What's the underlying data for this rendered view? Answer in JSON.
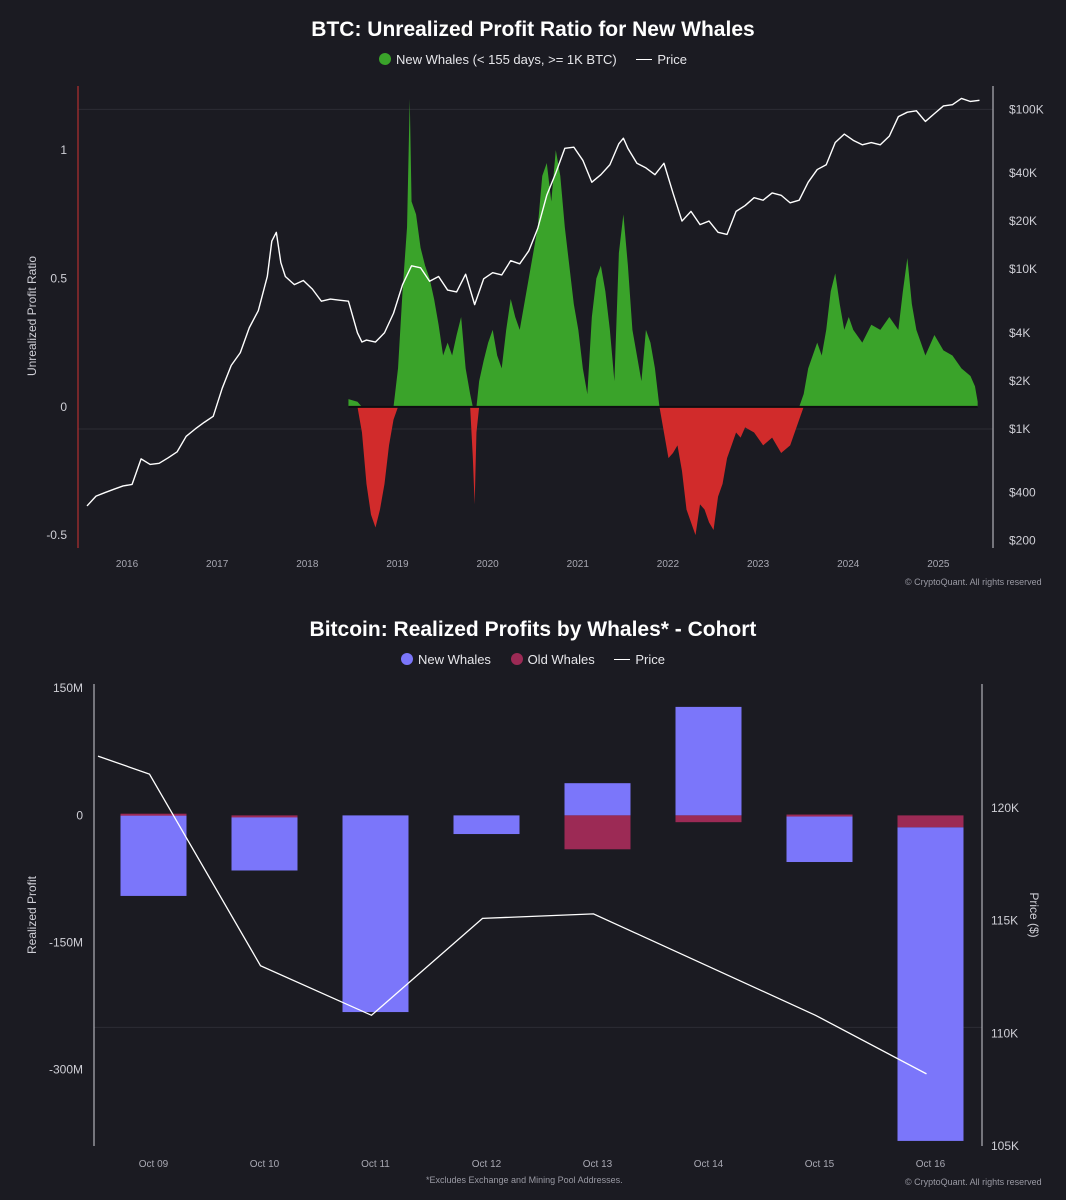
{
  "chart_data": [
    {
      "type": "area",
      "title": "BTC: Unrealized Profit Ratio for New Whales",
      "ylabel": "Unrealized Profit Ratio",
      "ylim": [
        -0.55,
        1.25
      ],
      "yticks": [
        1,
        0.5,
        0,
        -0.5
      ],
      "yticklabels": [
        "1",
        "0.5",
        "0",
        "-0.5"
      ],
      "y2lim": [
        180,
        140000
      ],
      "y2ticks": [
        100000,
        40000,
        20000,
        10000,
        4000,
        2000,
        1000,
        400,
        200
      ],
      "y2ticklabels": [
        "$100K",
        "$40K",
        "$20K",
        "$10K",
        "$4K",
        "$2K",
        "$1K",
        "$400",
        "$200"
      ],
      "y2scale": "log",
      "xlim": [
        2015.8,
        2025.95
      ],
      "xticks": [
        2016,
        2017,
        2018,
        2019,
        2020,
        2021,
        2022,
        2023,
        2024,
        2025
      ],
      "xticklabels": [
        "2016",
        "2017",
        "2018",
        "2019",
        "2020",
        "2021",
        "2022",
        "2023",
        "2024",
        "2025"
      ],
      "legend": [
        "New Whales (< 155 days, >= 1K BTC)",
        "Price"
      ],
      "legend_position": "top-center",
      "colors": {
        "positive": "#3aa32a",
        "negative": "#d12b2b",
        "price": "#ffffff"
      },
      "copyright": "© CryptoQuant. All rights reserved",
      "series": [
        {
          "name": "New Whales (< 155 days, >= 1K BTC)",
          "x": [
            2018.8,
            2018.9,
            2018.95,
            2019.0,
            2019.05,
            2019.1,
            2019.15,
            2019.2,
            2019.25,
            2019.3,
            2019.35,
            2019.4,
            2019.45,
            2019.48,
            2019.5,
            2019.55,
            2019.6,
            2019.65,
            2019.7,
            2019.75,
            2019.8,
            2019.85,
            2019.9,
            2019.95,
            2020.0,
            2020.05,
            2020.1,
            2020.15,
            2020.18,
            2020.2,
            2020.22,
            2020.25,
            2020.3,
            2020.35,
            2020.4,
            2020.45,
            2020.5,
            2020.55,
            2020.6,
            2020.65,
            2020.7,
            2020.75,
            2020.8,
            2020.85,
            2020.9,
            2020.95,
            2021.0,
            2021.05,
            2021.1,
            2021.15,
            2021.2,
            2021.25,
            2021.3,
            2021.35,
            2021.4,
            2021.45,
            2021.5,
            2021.55,
            2021.6,
            2021.65,
            2021.7,
            2021.75,
            2021.8,
            2021.85,
            2021.9,
            2021.95,
            2022.0,
            2022.05,
            2022.1,
            2022.15,
            2022.2,
            2022.25,
            2022.3,
            2022.35,
            2022.4,
            2022.45,
            2022.5,
            2022.55,
            2022.6,
            2022.65,
            2022.7,
            2022.75,
            2022.8,
            2022.85,
            2022.9,
            2022.95,
            2023.0,
            2023.05,
            2023.1,
            2023.15,
            2023.2,
            2023.3,
            2023.4,
            2023.5,
            2023.6,
            2023.7,
            2023.8,
            2023.85,
            2023.9,
            2023.95,
            2024.0,
            2024.05,
            2024.1,
            2024.15,
            2024.2,
            2024.25,
            2024.3,
            2024.35,
            2024.4,
            2024.5,
            2024.6,
            2024.7,
            2024.8,
            2024.9,
            2024.95,
            2025.0,
            2025.05,
            2025.1,
            2025.15,
            2025.2,
            2025.3,
            2025.4,
            2025.5,
            2025.6,
            2025.7,
            2025.75,
            2025.78
          ],
          "values": [
            0.03,
            0.02,
            -0.1,
            -0.3,
            -0.42,
            -0.47,
            -0.4,
            -0.3,
            -0.15,
            -0.05,
            0.15,
            0.45,
            0.7,
            1.2,
            0.8,
            0.75,
            0.62,
            0.55,
            0.5,
            0.42,
            0.32,
            0.2,
            0.25,
            0.2,
            0.28,
            0.35,
            0.15,
            0.05,
            -0.2,
            -0.38,
            -0.1,
            0.1,
            0.18,
            0.25,
            0.3,
            0.2,
            0.15,
            0.3,
            0.42,
            0.35,
            0.3,
            0.4,
            0.5,
            0.6,
            0.7,
            0.9,
            0.95,
            0.8,
            1.0,
            0.9,
            0.7,
            0.55,
            0.4,
            0.3,
            0.15,
            0.05,
            0.35,
            0.5,
            0.55,
            0.45,
            0.3,
            0.1,
            0.6,
            0.75,
            0.55,
            0.3,
            0.2,
            0.1,
            0.3,
            0.25,
            0.15,
            0.0,
            -0.1,
            -0.2,
            -0.18,
            -0.15,
            -0.25,
            -0.4,
            -0.45,
            -0.5,
            -0.38,
            -0.4,
            -0.45,
            -0.48,
            -0.35,
            -0.3,
            -0.2,
            -0.15,
            -0.1,
            -0.12,
            -0.08,
            -0.1,
            -0.15,
            -0.12,
            -0.18,
            -0.15,
            -0.05,
            0.05,
            0.15,
            0.2,
            0.25,
            0.2,
            0.3,
            0.45,
            0.52,
            0.4,
            0.3,
            0.35,
            0.3,
            0.25,
            0.32,
            0.3,
            0.35,
            0.3,
            0.45,
            0.58,
            0.4,
            0.3,
            0.25,
            0.2,
            0.28,
            0.22,
            0.2,
            0.15,
            0.12,
            0.08,
            0.02
          ]
        },
        {
          "name": "Price",
          "x": [
            2015.9,
            2016.0,
            2016.1,
            2016.2,
            2016.3,
            2016.4,
            2016.5,
            2016.6,
            2016.7,
            2016.8,
            2016.9,
            2017.0,
            2017.1,
            2017.2,
            2017.3,
            2017.4,
            2017.5,
            2017.6,
            2017.7,
            2017.8,
            2017.9,
            2017.95,
            2018.0,
            2018.05,
            2018.1,
            2018.2,
            2018.3,
            2018.4,
            2018.5,
            2018.6,
            2018.7,
            2018.8,
            2018.9,
            2018.95,
            2019.0,
            2019.1,
            2019.2,
            2019.3,
            2019.4,
            2019.5,
            2019.6,
            2019.7,
            2019.8,
            2019.9,
            2020.0,
            2020.1,
            2020.2,
            2020.3,
            2020.4,
            2020.5,
            2020.6,
            2020.7,
            2020.8,
            2020.9,
            2021.0,
            2021.1,
            2021.2,
            2021.3,
            2021.4,
            2021.5,
            2021.6,
            2021.7,
            2021.8,
            2021.85,
            2021.9,
            2022.0,
            2022.1,
            2022.2,
            2022.3,
            2022.4,
            2022.5,
            2022.6,
            2022.7,
            2022.8,
            2022.9,
            2023.0,
            2023.1,
            2023.2,
            2023.3,
            2023.4,
            2023.5,
            2023.6,
            2023.7,
            2023.8,
            2023.9,
            2024.0,
            2024.1,
            2024.2,
            2024.3,
            2024.4,
            2024.5,
            2024.6,
            2024.7,
            2024.8,
            2024.9,
            2025.0,
            2025.1,
            2025.2,
            2025.3,
            2025.4,
            2025.5,
            2025.6,
            2025.7,
            2025.8
          ],
          "values": [
            330,
            380,
            400,
            420,
            440,
            450,
            650,
            600,
            610,
            660,
            720,
            900,
            1000,
            1100,
            1200,
            1800,
            2500,
            3000,
            4300,
            5500,
            9000,
            15000,
            17000,
            11000,
            9000,
            8000,
            8500,
            7500,
            6300,
            6500,
            6400,
            6300,
            4000,
            3500,
            3600,
            3500,
            4000,
            5300,
            8000,
            10500,
            10200,
            8400,
            9000,
            7400,
            7200,
            9300,
            6000,
            8700,
            9500,
            9200,
            11300,
            10800,
            13000,
            18000,
            29000,
            40000,
            57000,
            58000,
            48000,
            35000,
            39000,
            45000,
            61000,
            66000,
            57000,
            46000,
            43000,
            39000,
            46000,
            30000,
            20000,
            23000,
            19000,
            20000,
            17000,
            16500,
            23000,
            25000,
            28000,
            27000,
            30000,
            29000,
            26000,
            27000,
            35000,
            42000,
            45000,
            62000,
            70000,
            64000,
            60000,
            62000,
            60000,
            68000,
            90000,
            96000,
            98000,
            84000,
            94000,
            105000,
            107000,
            117000,
            112000,
            114000
          ]
        }
      ]
    },
    {
      "type": "bar",
      "title": "Bitcoin: Realized Profits by Whales* - Cohort",
      "ylabel": "Realized Profit",
      "y2label": "Price ($)",
      "categories": [
        "Oct 09",
        "Oct 10",
        "Oct 11",
        "Oct 12",
        "Oct 13",
        "Oct 14",
        "Oct 15",
        "Oct 16"
      ],
      "ylim": [
        -390,
        155
      ],
      "yticks": [
        150,
        0,
        -150,
        -300
      ],
      "yticklabels": [
        "150M",
        "0",
        "-150M",
        "-300M"
      ],
      "y2lim": [
        105000,
        125500
      ],
      "y2ticks": [
        120000,
        115000,
        110000,
        105000
      ],
      "y2ticklabels": [
        "120K",
        "115K",
        "110K",
        "105K"
      ],
      "legend": [
        "New Whales",
        "Old Whales",
        "Price"
      ],
      "legend_position": "top-center",
      "colors": {
        "new_whales": "#7b76fa",
        "old_whales": "#9c2a55",
        "price": "#ffffff"
      },
      "footnote": "*Excludes Exchange and Mining Pool Addresses.",
      "copyright": "© CryptoQuant. All rights reserved",
      "series": [
        {
          "name": "New Whales",
          "values": [
            -95,
            -63,
            -232,
            -22,
            38,
            128,
            -55,
            -370
          ]
        },
        {
          "name": "Old Whales",
          "values": [
            2,
            -2,
            0,
            0,
            -40,
            -8,
            1,
            -14
          ]
        },
        {
          "name": "Price",
          "values": [
            122300,
            121500,
            113000,
            110800,
            115100,
            115300,
            110800,
            108200
          ],
          "x_index": [
            -0.5,
            0,
            1,
            2,
            3,
            4,
            6,
            7
          ]
        }
      ]
    }
  ]
}
